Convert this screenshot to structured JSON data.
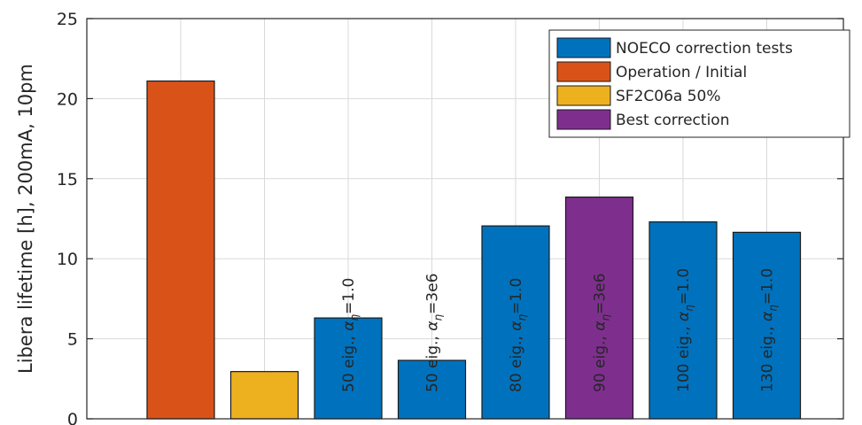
{
  "chart_data": {
    "type": "bar",
    "ylabel": "Libera lifetime [h], 200mA, 10pm",
    "xlabel": "",
    "ylim": [
      0,
      25
    ],
    "yticks": [
      0,
      5,
      10,
      15,
      20,
      25
    ],
    "grid": true,
    "legend_position": "top-right",
    "legend": [
      {
        "name": "NOECO correction tests",
        "color": "#0072BD"
      },
      {
        "name": "Operation / Initial",
        "color": "#D95319"
      },
      {
        "name": "SF2C06a 50%",
        "color": "#EDB120"
      },
      {
        "name": "Best correction",
        "color": "#7E2F8E"
      }
    ],
    "bars": [
      {
        "value": 21.1,
        "color": "#D95319",
        "label_prefix": "",
        "label_suffix": ""
      },
      {
        "value": 2.95,
        "color": "#EDB120",
        "label_prefix": "",
        "label_suffix": ""
      },
      {
        "value": 6.3,
        "color": "#0072BD",
        "label_prefix": "50 eig., ",
        "label_suffix": "=1.0"
      },
      {
        "value": 3.65,
        "color": "#0072BD",
        "label_prefix": "50 eig., ",
        "label_suffix": "=3e6"
      },
      {
        "value": 12.05,
        "color": "#0072BD",
        "label_prefix": "80 eig., ",
        "label_suffix": "=1.0"
      },
      {
        "value": 13.85,
        "color": "#7E2F8E",
        "label_prefix": "90 eig., ",
        "label_suffix": "=3e6"
      },
      {
        "value": 12.3,
        "color": "#0072BD",
        "label_prefix": "100 eig., ",
        "label_suffix": "=1.0"
      },
      {
        "value": 11.65,
        "color": "#0072BD",
        "label_prefix": "130 eig., ",
        "label_suffix": "=1.0"
      }
    ],
    "label_symbol": "α",
    "label_subscript": "η"
  }
}
